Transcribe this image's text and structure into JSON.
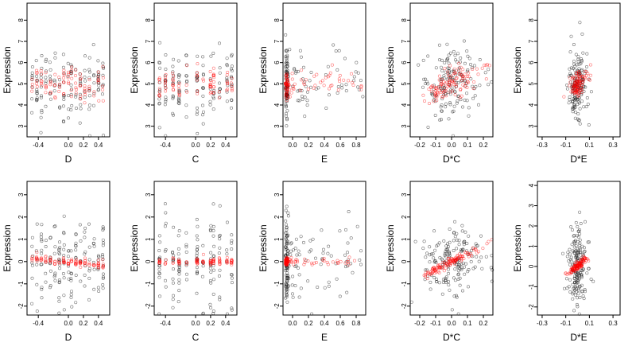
{
  "colors": {
    "observed": "#000000",
    "fitted": "#ff0000"
  },
  "chart_data": [
    {
      "type": "scatter",
      "xlabel": "D",
      "ylabel": "Expression",
      "xlim": [
        -0.55,
        0.55
      ],
      "ylim": [
        2.5,
        8.8
      ],
      "xticks": [
        -0.4,
        0.0,
        0.2,
        0.4
      ],
      "xtick_labels": [
        "-0.4",
        "0.0",
        "0.2",
        "0.4"
      ],
      "yticks": [
        3,
        4,
        5,
        6,
        7,
        8
      ],
      "ytick_labels": [
        "3",
        "4",
        "5",
        "6",
        "7",
        "8"
      ],
      "series": [],
      "x_pattern": "discrete",
      "x_levels": [
        -0.48,
        -0.42,
        -0.36,
        -0.3,
        -0.24,
        -0.18,
        -0.12,
        -0.06,
        0.0,
        0.04,
        0.1,
        0.16,
        0.22,
        0.28,
        0.34,
        0.4,
        0.46
      ],
      "black_center": 5.0,
      "black_spread": 0.85,
      "red_intercept": 5.0,
      "red_slope": 0.0,
      "red_spread": 0.35,
      "n_black": 140,
      "n_red": 90
    },
    {
      "type": "scatter",
      "xlabel": "C",
      "ylabel": "Expression",
      "xlim": [
        -0.55,
        0.55
      ],
      "ylim": [
        2.5,
        8.8
      ],
      "xticks": [
        -0.4,
        0.0,
        0.2,
        0.4
      ],
      "xtick_labels": [
        "-0.4",
        "0.0",
        "0.2",
        "0.4"
      ],
      "yticks": [
        3,
        4,
        5,
        6,
        7,
        8
      ],
      "ytick_labels": [
        "3",
        "4",
        "5",
        "6",
        "7",
        "8"
      ],
      "series": [],
      "x_pattern": "discrete",
      "x_levels": [
        -0.48,
        -0.4,
        -0.3,
        -0.22,
        -0.12,
        0.02,
        0.1,
        0.2,
        0.24,
        0.32,
        0.42,
        0.48
      ],
      "black_center": 5.0,
      "black_spread": 0.9,
      "red_intercept": 5.0,
      "red_slope": 0.0,
      "red_spread": 0.35,
      "n_black": 130,
      "n_red": 80
    },
    {
      "type": "scatter",
      "xlabel": "E",
      "ylabel": "Expression",
      "xlim": [
        -0.12,
        0.92
      ],
      "ylim": [
        2.5,
        8.8
      ],
      "xticks": [
        0.0,
        0.2,
        0.4,
        0.6,
        0.8
      ],
      "xtick_labels": [
        "0.0",
        "0.2",
        "0.4",
        "0.6",
        "0.8"
      ],
      "yticks": [
        3,
        4,
        5,
        6,
        7,
        8
      ],
      "ytick_labels": [
        "3",
        "4",
        "5",
        "6",
        "7",
        "8"
      ],
      "series": [],
      "x_pattern": "skewed",
      "x_levels": [],
      "black_center": 5.0,
      "black_spread": 0.9,
      "red_intercept": 4.9,
      "red_slope": 0.4,
      "red_spread": 0.3,
      "n_black": 140,
      "n_red": 90
    },
    {
      "type": "scatter",
      "xlabel": "D*C",
      "ylabel": "Expression",
      "xlim": [
        -0.26,
        0.26
      ],
      "ylim": [
        2.5,
        8.8
      ],
      "xticks": [
        -0.2,
        -0.1,
        0.0,
        0.1,
        0.2
      ],
      "xtick_labels": [
        "-0.2",
        "-0.1",
        "0.0",
        "0.1",
        "0.2"
      ],
      "yticks": [
        3,
        4,
        5,
        6,
        7,
        8
      ],
      "ytick_labels": [
        "3",
        "4",
        "5",
        "6",
        "7",
        "8"
      ],
      "series": [],
      "x_pattern": "normal",
      "x_levels": [],
      "x_sd": 0.09,
      "black_center": 5.0,
      "black_spread": 0.9,
      "red_intercept": 5.0,
      "red_slope": 3.0,
      "red_spread": 0.35,
      "n_black": 150,
      "n_red": 110
    },
    {
      "type": "scatter",
      "xlabel": "D*E",
      "ylabel": "Expression",
      "xlim": [
        -0.34,
        0.36
      ],
      "ylim": [
        2.5,
        8.8
      ],
      "xticks": [
        -0.3,
        -0.1,
        0.1,
        0.3
      ],
      "xtick_labels": [
        "-0.3",
        "-0.1",
        "0.1",
        "0.3"
      ],
      "yticks": [
        3,
        4,
        5,
        6,
        7,
        8
      ],
      "ytick_labels": [
        "3",
        "4",
        "5",
        "6",
        "7",
        "8"
      ],
      "series": [],
      "x_pattern": "narrow",
      "x_levels": [],
      "x_sd": 0.04,
      "black_center": 5.0,
      "black_spread": 0.9,
      "red_intercept": 5.0,
      "red_slope": 3.0,
      "red_spread": 0.3,
      "n_black": 150,
      "n_red": 100
    },
    {
      "type": "scatter",
      "xlabel": "D",
      "ylabel": "Expression",
      "xlim": [
        -0.55,
        0.55
      ],
      "ylim": [
        -2.4,
        3.6
      ],
      "xticks": [
        -0.4,
        0.0,
        0.2,
        0.4
      ],
      "xtick_labels": [
        "-0.4",
        "0.0",
        "0.2",
        "0.4"
      ],
      "yticks": [
        -2,
        -1,
        0,
        1,
        2,
        3
      ],
      "ytick_labels": [
        "-2",
        "-1",
        "0",
        "1",
        "2",
        "3"
      ],
      "series": [],
      "x_pattern": "discrete",
      "x_levels": [
        -0.48,
        -0.42,
        -0.36,
        -0.3,
        -0.24,
        -0.18,
        -0.12,
        -0.06,
        0.0,
        0.04,
        0.1,
        0.16,
        0.22,
        0.28,
        0.34,
        0.4,
        0.46
      ],
      "black_center": 0.0,
      "black_spread": 1.0,
      "red_intercept": 0.0,
      "red_slope": -0.3,
      "red_spread": 0.08,
      "n_black": 150,
      "n_red": 100
    },
    {
      "type": "scatter",
      "xlabel": "C",
      "ylabel": "Expression",
      "xlim": [
        -0.55,
        0.55
      ],
      "ylim": [
        -2.4,
        3.6
      ],
      "xticks": [
        -0.4,
        0.0,
        0.2,
        0.4
      ],
      "xtick_labels": [
        "-0.4",
        "0.0",
        "0.2",
        "0.4"
      ],
      "yticks": [
        -2,
        -1,
        0,
        1,
        2,
        3
      ],
      "ytick_labels": [
        "-2",
        "-1",
        "0",
        "1",
        "2",
        "3"
      ],
      "series": [],
      "x_pattern": "discrete",
      "x_levels": [
        -0.48,
        -0.4,
        -0.3,
        -0.22,
        -0.12,
        0.02,
        0.1,
        0.2,
        0.24,
        0.32,
        0.42,
        0.48
      ],
      "black_center": 0.0,
      "black_spread": 1.0,
      "red_intercept": 0.0,
      "red_slope": 0.0,
      "red_spread": 0.08,
      "n_black": 140,
      "n_red": 90
    },
    {
      "type": "scatter",
      "xlabel": "E",
      "ylabel": "Expression",
      "xlim": [
        -0.12,
        0.92
      ],
      "ylim": [
        -2.4,
        3.6
      ],
      "xticks": [
        0.0,
        0.2,
        0.4,
        0.6,
        0.8
      ],
      "xtick_labels": [
        "0.0",
        "0.2",
        "0.4",
        "0.6",
        "0.8"
      ],
      "yticks": [
        -2,
        -1,
        0,
        1,
        2,
        3
      ],
      "ytick_labels": [
        "-2",
        "-1",
        "0",
        "1",
        "2",
        "3"
      ],
      "series": [],
      "x_pattern": "skewed",
      "x_levels": [],
      "black_center": 0.0,
      "black_spread": 1.0,
      "red_intercept": 0.0,
      "red_slope": 0.0,
      "red_spread": 0.08,
      "n_black": 150,
      "n_red": 100
    },
    {
      "type": "scatter",
      "xlabel": "D*C",
      "ylabel": "Expression",
      "xlim": [
        -0.26,
        0.26
      ],
      "ylim": [
        -2.4,
        3.6
      ],
      "xticks": [
        -0.2,
        -0.1,
        0.0,
        0.1,
        0.2
      ],
      "xtick_labels": [
        "-0.2",
        "-0.1",
        "0.0",
        "0.1",
        "0.2"
      ],
      "yticks": [
        -2,
        -1,
        0,
        1,
        2,
        3
      ],
      "ytick_labels": [
        "-2",
        "-1",
        "0",
        "1",
        "2",
        "3"
      ],
      "series": [],
      "x_pattern": "normal",
      "x_levels": [],
      "x_sd": 0.09,
      "black_center": 0.0,
      "black_spread": 0.9,
      "red_intercept": 0.0,
      "red_slope": 3.5,
      "red_spread": 0.1,
      "n_black": 160,
      "n_red": 120
    },
    {
      "type": "scatter",
      "xlabel": "D*E",
      "ylabel": "Expression",
      "xlim": [
        -0.34,
        0.36
      ],
      "ylim": [
        -2.4,
        4.2
      ],
      "xticks": [
        -0.3,
        -0.1,
        0.1,
        0.3
      ],
      "xtick_labels": [
        "-0.3",
        "-0.1",
        "0.1",
        "0.3"
      ],
      "yticks": [
        -2,
        -1,
        0,
        1,
        2,
        3,
        4
      ],
      "ytick_labels": [
        "-2",
        "-1",
        "0",
        "1",
        "2",
        "3",
        "4"
      ],
      "series": [],
      "x_pattern": "narrow",
      "x_levels": [],
      "x_sd": 0.04,
      "black_center": 0.0,
      "black_spread": 1.0,
      "red_intercept": 0.0,
      "red_slope": 4.5,
      "red_spread": 0.1,
      "n_black": 160,
      "n_red": 110
    }
  ]
}
